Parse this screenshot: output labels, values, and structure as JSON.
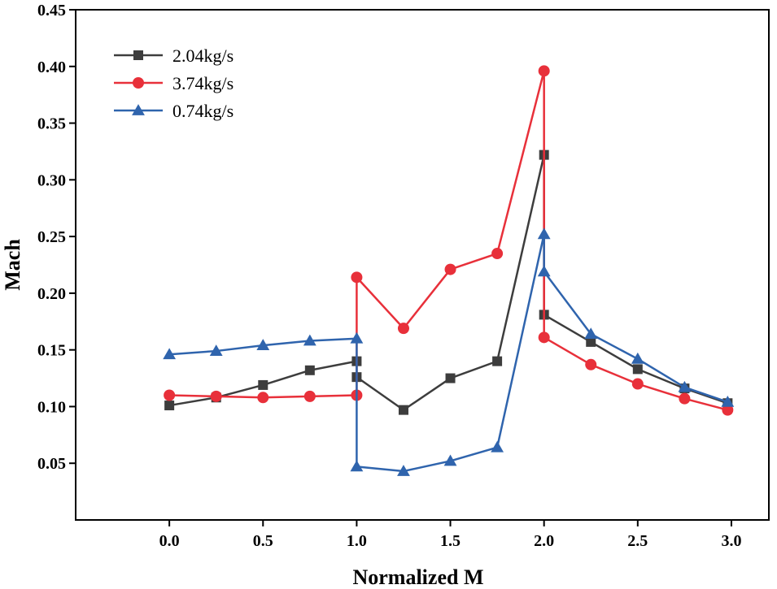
{
  "chart_data": {
    "type": "line",
    "title": "",
    "xlabel": "Normalized M",
    "ylabel": "Mach",
    "xlim": [
      -0.5,
      3.2
    ],
    "ylim": [
      0.0,
      0.45
    ],
    "xticks": [
      0.0,
      0.5,
      1.0,
      1.5,
      2.0,
      2.5,
      3.0
    ],
    "xtick_labels": [
      "0.0",
      "0.5",
      "1.0",
      "1.5",
      "2.0",
      "2.5",
      "3.0"
    ],
    "yticks": [
      0.05,
      0.1,
      0.15,
      0.2,
      0.25,
      0.3,
      0.35,
      0.4,
      0.45
    ],
    "ytick_labels": [
      "0.05",
      "0.10",
      "0.15",
      "0.20",
      "0.25",
      "0.30",
      "0.35",
      "0.40",
      "0.45"
    ],
    "grid": false,
    "legend_position": "top-left",
    "series": [
      {
        "name": "2.04kg/s",
        "color": "#3d3d3d",
        "marker": "square",
        "x": [
          0,
          0.25,
          0.5,
          0.75,
          1.0,
          1.0,
          1.25,
          1.5,
          1.75,
          2.0,
          2.0,
          2.25,
          2.5,
          2.75,
          2.98
        ],
        "y": [
          0.101,
          0.108,
          0.119,
          0.132,
          0.14,
          0.126,
          0.097,
          0.125,
          0.14,
          0.322,
          0.181,
          0.157,
          0.133,
          0.116,
          0.103
        ]
      },
      {
        "name": "3.74kg/s",
        "color": "#e8303a",
        "marker": "circle",
        "x": [
          0,
          0.25,
          0.5,
          0.75,
          1.0,
          1.0,
          1.25,
          1.5,
          1.75,
          2.0,
          2.0,
          2.25,
          2.5,
          2.75,
          2.98
        ],
        "y": [
          0.11,
          0.109,
          0.108,
          0.109,
          0.11,
          0.214,
          0.169,
          0.221,
          0.235,
          0.396,
          0.161,
          0.137,
          0.12,
          0.107,
          0.097
        ]
      },
      {
        "name": "0.74kg/s",
        "color": "#2f64ad",
        "marker": "triangle",
        "x": [
          0,
          0.25,
          0.5,
          0.75,
          1.0,
          1.0,
          1.25,
          1.5,
          1.75,
          2.0,
          2.0,
          2.25,
          2.5,
          2.75,
          2.98
        ],
        "y": [
          0.146,
          0.149,
          0.154,
          0.158,
          0.16,
          0.047,
          0.043,
          0.052,
          0.064,
          0.252,
          0.219,
          0.164,
          0.142,
          0.117,
          0.104
        ]
      }
    ]
  }
}
